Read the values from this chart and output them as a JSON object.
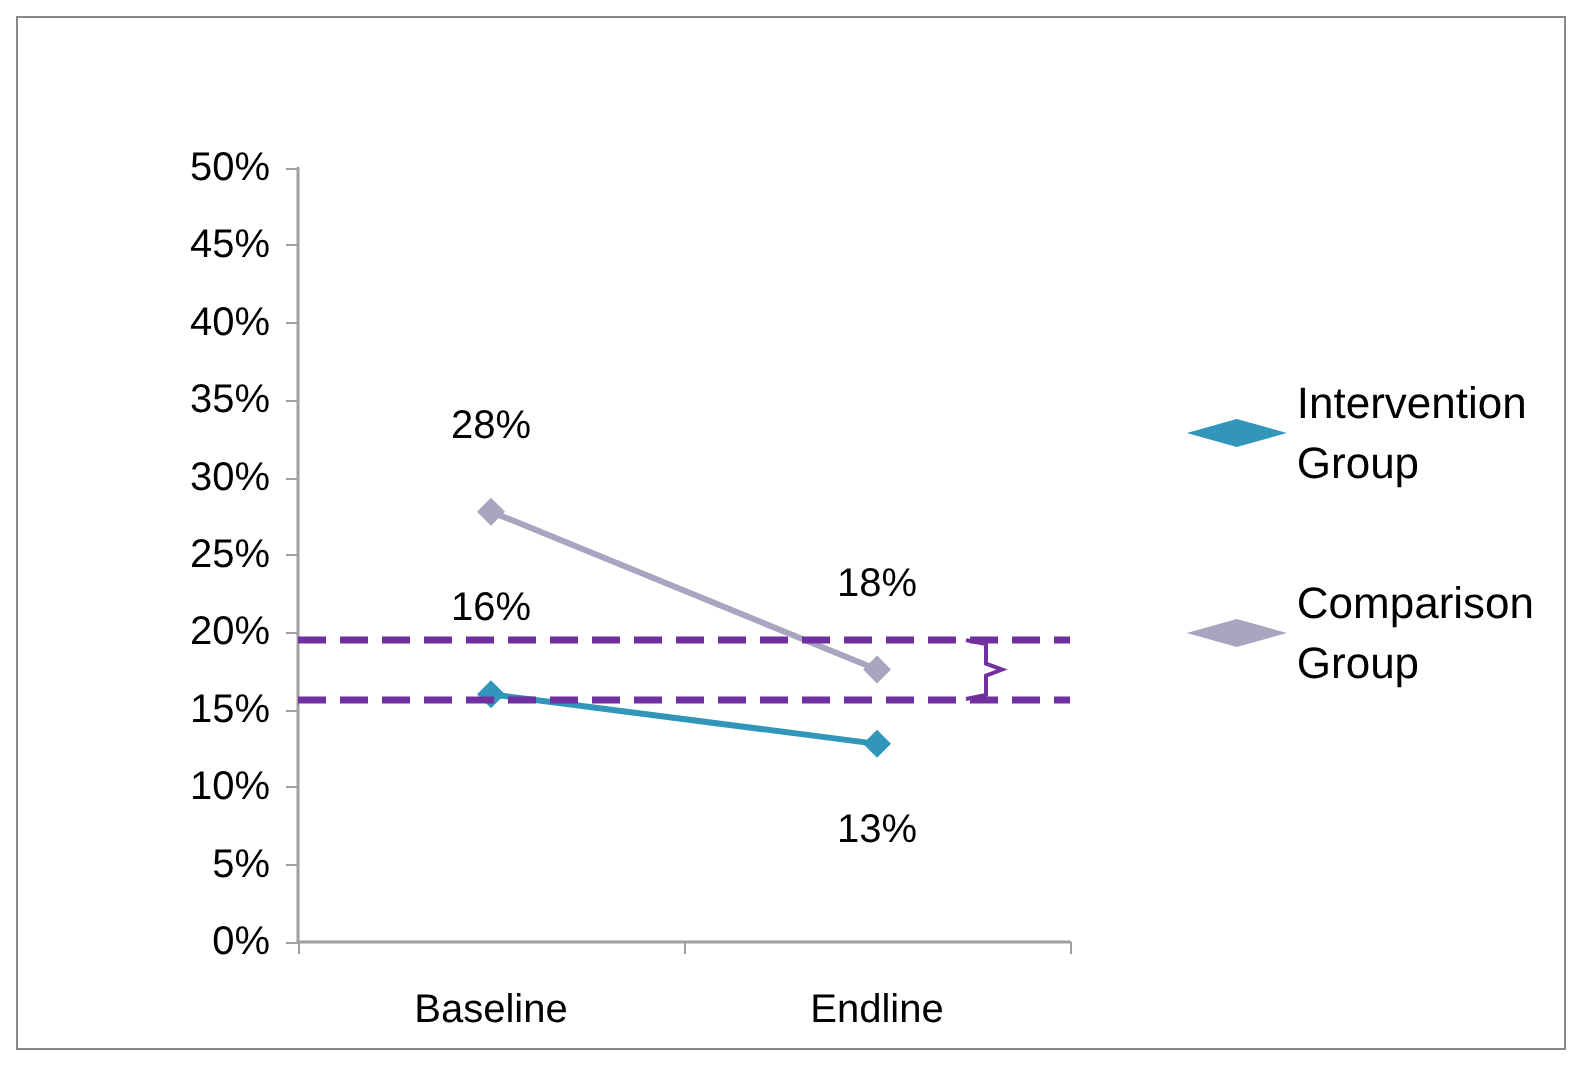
{
  "chart_data": {
    "type": "line",
    "categories": [
      "Baseline",
      "Endline"
    ],
    "series": [
      {
        "name": "Intervention Group",
        "color": "#3196b9",
        "values": [
          16.0,
          12.8
        ],
        "value_labels": [
          "16%",
          "13%"
        ]
      },
      {
        "name": "Comparison Group",
        "color": "#a9a4bf",
        "values": [
          27.8,
          17.6
        ],
        "value_labels": [
          "28%",
          "18%"
        ]
      }
    ],
    "ylim": [
      0,
      50
    ],
    "yticks": [
      {
        "value": 0,
        "label": "0%"
      },
      {
        "value": 5,
        "label": "5%"
      },
      {
        "value": 10,
        "label": "10%"
      },
      {
        "value": 15,
        "label": "15%"
      },
      {
        "value": 20,
        "label": "20%"
      },
      {
        "value": 25,
        "label": "25%"
      },
      {
        "value": 30,
        "label": "30%"
      },
      {
        "value": 35,
        "label": "35%"
      },
      {
        "value": 40,
        "label": "40%"
      },
      {
        "value": 45,
        "label": "45%"
      },
      {
        "value": 50,
        "label": "50%"
      }
    ],
    "ref_lines": [
      {
        "axis": "y",
        "value": 19.5,
        "color": "#7030a0",
        "line_style": "dashed"
      },
      {
        "axis": "y",
        "value": 15.7,
        "color": "#7030a0",
        "line_style": "dashed"
      }
    ],
    "grid": false,
    "legend": "right",
    "marker": "diamond",
    "line_style": "solid"
  }
}
